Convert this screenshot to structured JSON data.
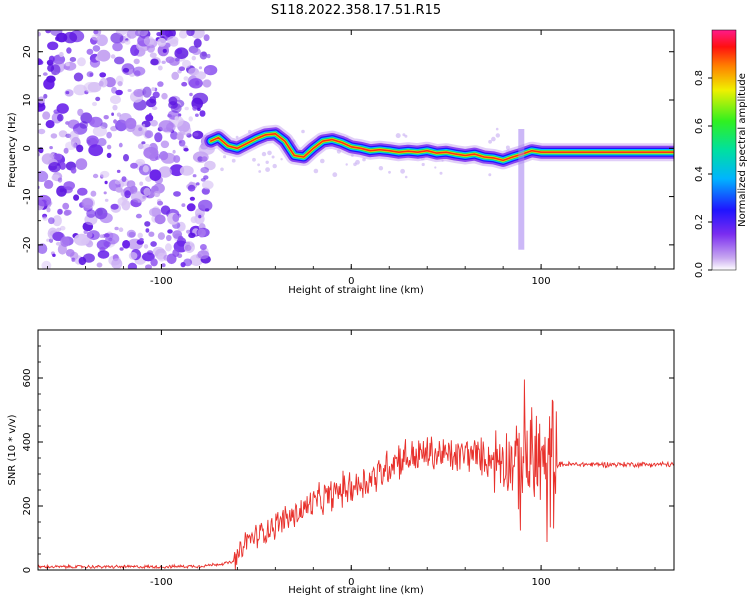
{
  "title": "S118.2022.358.17.51.R15",
  "colors": {
    "snr_line": "#e8312c",
    "axis": "#000000",
    "background": "#ffffff"
  },
  "chart_data": [
    {
      "type": "heatmap",
      "xlabel": "Height of straight line (km)",
      "ylabel": "Frequency (Hz)",
      "xlim": [
        -165,
        170
      ],
      "ylim": [
        -25,
        24.5
      ],
      "xticks": [
        -100,
        0,
        100
      ],
      "yticks": [
        -20,
        -10,
        0,
        10,
        20
      ],
      "colorbar": {
        "label": "Normalized spectral amplitude",
        "range": [
          0,
          1
        ],
        "ticks": [
          0.0,
          0.2,
          0.4,
          0.6,
          0.8
        ],
        "colormap": "rainbow"
      },
      "noise_region": {
        "x_start": -165,
        "x_end": -74
      },
      "ridge": {
        "x": [
          -74,
          -70,
          -65,
          -60,
          -55,
          -50,
          -45,
          -40,
          -35,
          -30,
          -25,
          -20,
          -15,
          -10,
          -5,
          0,
          5,
          10,
          15,
          20,
          25,
          30,
          35,
          40,
          45,
          50,
          55,
          60,
          65,
          70,
          75,
          80,
          85,
          90,
          95,
          100,
          110,
          120,
          130,
          140,
          150,
          160,
          170
        ],
        "y": [
          1.5,
          2.2,
          0.5,
          0.0,
          1.0,
          2.0,
          2.8,
          3.0,
          1.5,
          -1.5,
          -1.8,
          0.0,
          1.5,
          1.8,
          1.2,
          0.3,
          0.0,
          -0.5,
          -0.3,
          -0.5,
          -0.8,
          -0.6,
          -0.8,
          -0.5,
          -1.0,
          -0.8,
          -1.2,
          -1.5,
          -1.2,
          -1.8,
          -2.0,
          -2.5,
          -1.8,
          -1.2,
          -0.5,
          -0.8,
          -0.8,
          -0.8,
          -0.8,
          -0.8,
          -0.8,
          -0.8,
          -0.8
        ]
      }
    },
    {
      "type": "line",
      "xlabel": "Height of straight line (km)",
      "ylabel": "SNR (10 * v/v)",
      "xlim": [
        -165,
        170
      ],
      "ylim": [
        0,
        750
      ],
      "xticks": [
        -100,
        0,
        100
      ],
      "yticks": [
        0,
        200,
        400,
        600
      ],
      "series": [
        {
          "x": [
            -165,
            -140,
            -120,
            -100,
            -80,
            -70,
            -62,
            -58,
            -55,
            -50,
            -45,
            -40,
            -35,
            -30,
            -25,
            -20,
            -15,
            -10,
            -5,
            0,
            5,
            10,
            15,
            20,
            25,
            30,
            35,
            40,
            45,
            50,
            55,
            60,
            65,
            70,
            75,
            80,
            85,
            88,
            90,
            92,
            95,
            98,
            100,
            102,
            104,
            106,
            108,
            110,
            120,
            130,
            140,
            150,
            160,
            170
          ],
          "y": [
            10,
            10,
            10,
            10,
            12,
            18,
            25,
            55,
            95,
            105,
            125,
            140,
            160,
            170,
            190,
            210,
            220,
            235,
            250,
            260,
            270,
            285,
            300,
            330,
            350,
            350,
            355,
            365,
            360,
            360,
            350,
            365,
            360,
            350,
            345,
            355,
            340,
            330,
            350,
            360,
            340,
            330,
            380,
            250,
            320,
            350,
            330,
            330,
            330,
            330,
            330,
            330,
            330,
            330
          ]
        }
      ]
    }
  ]
}
